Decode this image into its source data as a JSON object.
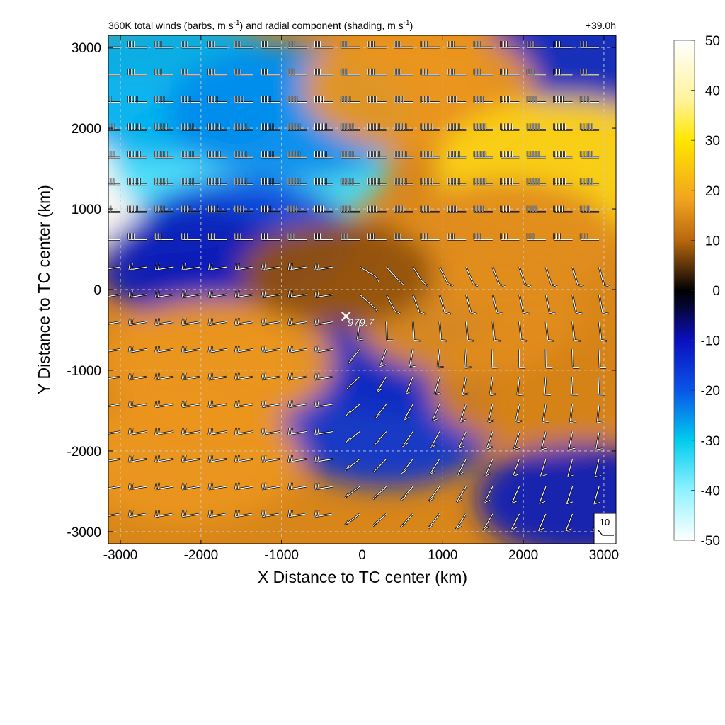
{
  "chart_data": {
    "type": "heatmap",
    "title": "360K total winds (barbs, m s-1) and radial component (shading, m s-1)",
    "title_parts": {
      "prefix": "360K total winds (barbs, m s",
      "sup1": "-1",
      "middle": ") and radial component (shading, m s",
      "sup2": "-1",
      "suffix": ")"
    },
    "lead_time": "+39.0h",
    "xlabel": "X Distance to TC center (km)",
    "ylabel": "Y Distance to TC center (km)",
    "xlim": [
      -3150,
      3150
    ],
    "ylim": [
      -3150,
      3150
    ],
    "xticks": [
      -3000,
      -2000,
      -1000,
      0,
      1000,
      2000,
      3000
    ],
    "yticks": [
      3000,
      2000,
      1000,
      0,
      -1000,
      -2000,
      -3000
    ],
    "grid": true,
    "colorbar": {
      "ticks": [
        50,
        40,
        30,
        20,
        10,
        0,
        -10,
        -20,
        -30,
        -40,
        -50
      ],
      "range": [
        -50,
        50
      ]
    },
    "center_marker": {
      "x": -200,
      "y": -330,
      "label": "979.7"
    },
    "barb_reference": {
      "label": "10"
    },
    "colors": {
      "inflow": "#0a10a8",
      "strong_inflow": "#ffffff",
      "outflow": "#e08a18",
      "strong_outflow": "#ffee33",
      "near_zero": "#000000"
    },
    "radial_field": [
      {
        "x": -2600,
        "y": 1550,
        "value": -50
      },
      {
        "x": -1400,
        "y": 1600,
        "value": -35
      },
      {
        "x": -2400,
        "y": 2500,
        "value": -28
      },
      {
        "x": -900,
        "y": 2200,
        "value": -25
      },
      {
        "x": -1500,
        "y": 600,
        "value": -18
      },
      {
        "x": -2000,
        "y": 300,
        "value": -12
      },
      {
        "x": 300,
        "y": -1700,
        "value": -16
      },
      {
        "x": 500,
        "y": -800,
        "value": -14
      },
      {
        "x": 2700,
        "y": -2600,
        "value": -12
      },
      {
        "x": 2800,
        "y": 2900,
        "value": -14
      },
      {
        "x": 700,
        "y": 2500,
        "value": 20
      },
      {
        "x": 2500,
        "y": 1500,
        "value": 28
      },
      {
        "x": 1800,
        "y": 600,
        "value": 18
      },
      {
        "x": -1800,
        "y": -900,
        "value": 20
      },
      {
        "x": -2200,
        "y": -2100,
        "value": 20
      },
      {
        "x": 2200,
        "y": -1200,
        "value": 16
      },
      {
        "x": 1300,
        "y": -300,
        "value": 18
      },
      {
        "x": -300,
        "y": 200,
        "value": 8
      }
    ]
  }
}
